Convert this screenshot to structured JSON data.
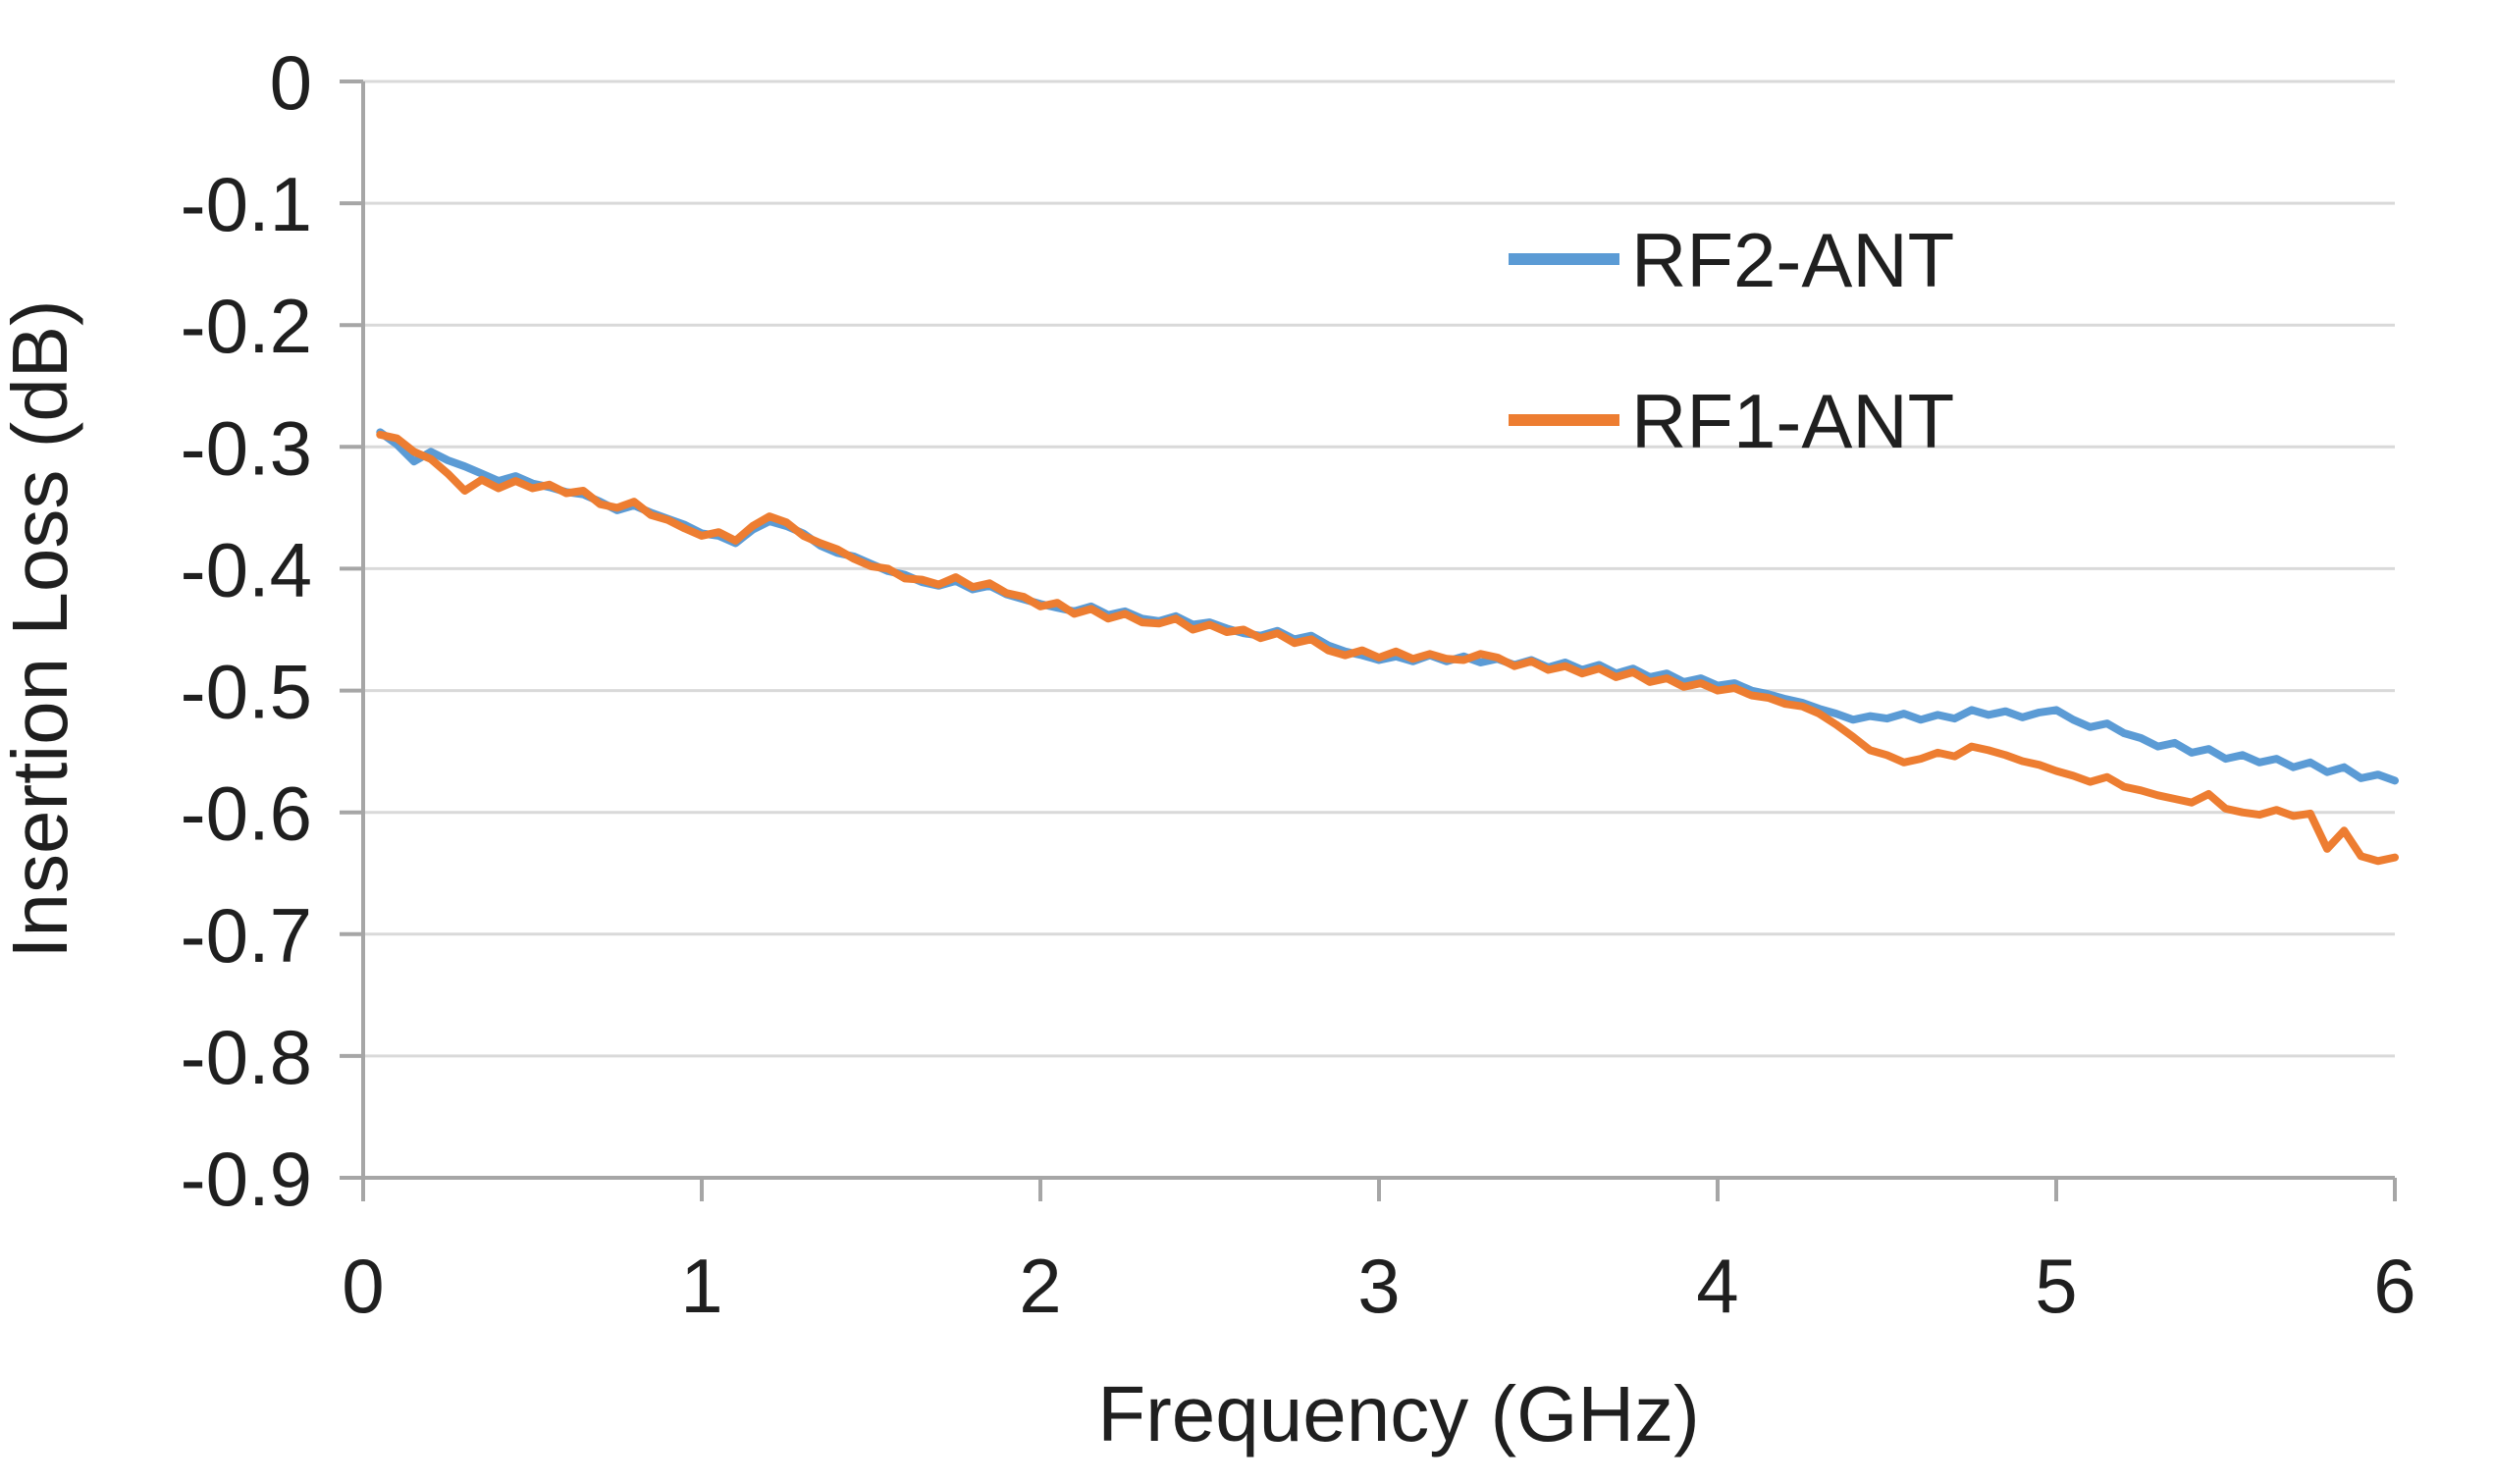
{
  "chart_data": {
    "type": "line",
    "title": "",
    "xlabel": "Frequency (GHz)",
    "ylabel": "Insertion Loss (dB)",
    "xlim": [
      0,
      6
    ],
    "ylim": [
      -0.9,
      0
    ],
    "x_ticks": [
      0,
      1,
      2,
      3,
      4,
      5,
      6
    ],
    "x_tick_labels": [
      "0",
      "1",
      "2",
      "3",
      "4",
      "5",
      "6"
    ],
    "y_ticks": [
      0,
      -0.1,
      -0.2,
      -0.3,
      -0.4,
      -0.5,
      -0.6,
      -0.7,
      -0.8,
      -0.9
    ],
    "y_tick_labels": [
      "0",
      "-0.1",
      "-0.2",
      "-0.3",
      "-0.4",
      "-0.5",
      "-0.6",
      "-0.7",
      "-0.8",
      "-0.9"
    ],
    "grid": "horizontal-only",
    "legend_position": "inside-top-right",
    "x_start": 0.05,
    "x_step": 0.05,
    "series": [
      {
        "name": "RF2-ANT",
        "color": "#5B9BD5",
        "values": [
          -0.288,
          -0.298,
          -0.312,
          -0.304,
          -0.311,
          -0.316,
          -0.322,
          -0.328,
          -0.324,
          -0.33,
          -0.333,
          -0.337,
          -0.339,
          -0.345,
          -0.352,
          -0.348,
          -0.354,
          -0.359,
          -0.364,
          -0.371,
          -0.373,
          -0.379,
          -0.368,
          -0.361,
          -0.365,
          -0.371,
          -0.381,
          -0.387,
          -0.39,
          -0.396,
          -0.402,
          -0.405,
          -0.411,
          -0.414,
          -0.41,
          -0.417,
          -0.414,
          -0.421,
          -0.425,
          -0.429,
          -0.432,
          -0.435,
          -0.431,
          -0.438,
          -0.435,
          -0.441,
          -0.443,
          -0.439,
          -0.446,
          -0.444,
          -0.449,
          -0.453,
          -0.455,
          -0.451,
          -0.458,
          -0.455,
          -0.463,
          -0.468,
          -0.471,
          -0.475,
          -0.472,
          -0.476,
          -0.471,
          -0.476,
          -0.472,
          -0.477,
          -0.474,
          -0.479,
          -0.475,
          -0.481,
          -0.477,
          -0.483,
          -0.479,
          -0.486,
          -0.482,
          -0.489,
          -0.486,
          -0.493,
          -0.49,
          -0.496,
          -0.494,
          -0.5,
          -0.503,
          -0.507,
          -0.51,
          -0.515,
          -0.519,
          -0.524,
          -0.521,
          -0.523,
          -0.519,
          -0.524,
          -0.52,
          -0.523,
          -0.516,
          -0.52,
          -0.517,
          -0.522,
          -0.518,
          -0.516,
          -0.524,
          -0.53,
          -0.527,
          -0.535,
          -0.539,
          -0.546,
          -0.543,
          -0.551,
          -0.548,
          -0.556,
          -0.553,
          -0.559,
          -0.556,
          -0.563,
          -0.559,
          -0.567,
          -0.563,
          -0.572,
          -0.569,
          -0.574
        ]
      },
      {
        "name": "RF1-ANT",
        "color": "#ED7D31",
        "values": [
          -0.29,
          -0.293,
          -0.304,
          -0.31,
          -0.322,
          -0.336,
          -0.327,
          -0.334,
          -0.328,
          -0.334,
          -0.331,
          -0.338,
          -0.336,
          -0.347,
          -0.35,
          -0.345,
          -0.356,
          -0.36,
          -0.367,
          -0.373,
          -0.37,
          -0.377,
          -0.365,
          -0.357,
          -0.362,
          -0.373,
          -0.379,
          -0.384,
          -0.392,
          -0.398,
          -0.4,
          -0.408,
          -0.409,
          -0.413,
          -0.407,
          -0.415,
          -0.412,
          -0.42,
          -0.423,
          -0.431,
          -0.428,
          -0.437,
          -0.433,
          -0.441,
          -0.437,
          -0.444,
          -0.445,
          -0.441,
          -0.45,
          -0.446,
          -0.452,
          -0.45,
          -0.457,
          -0.453,
          -0.461,
          -0.458,
          -0.467,
          -0.471,
          -0.467,
          -0.473,
          -0.468,
          -0.474,
          -0.47,
          -0.474,
          -0.475,
          -0.47,
          -0.473,
          -0.48,
          -0.476,
          -0.483,
          -0.48,
          -0.486,
          -0.482,
          -0.489,
          -0.485,
          -0.493,
          -0.49,
          -0.497,
          -0.494,
          -0.5,
          -0.498,
          -0.504,
          -0.506,
          -0.511,
          -0.513,
          -0.519,
          -0.528,
          -0.538,
          -0.549,
          -0.553,
          -0.559,
          -0.556,
          -0.551,
          -0.554,
          -0.546,
          -0.549,
          -0.553,
          -0.558,
          -0.561,
          -0.566,
          -0.57,
          -0.575,
          -0.571,
          -0.579,
          -0.582,
          -0.586,
          -0.589,
          -0.592,
          -0.585,
          -0.597,
          -0.6,
          -0.602,
          -0.598,
          -0.603,
          -0.601,
          -0.63,
          -0.615,
          -0.636,
          -0.64,
          -0.637
        ]
      }
    ]
  }
}
